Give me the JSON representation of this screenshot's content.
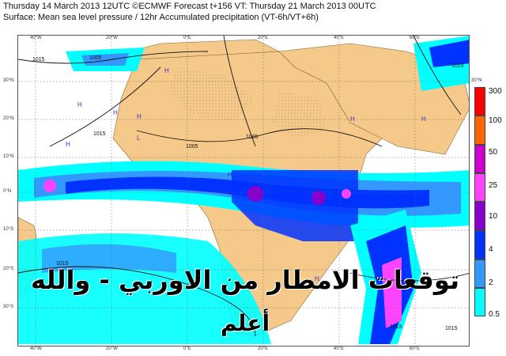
{
  "header": {
    "line1": "Thursday 14 March 2013 12UTC ©ECMWF Forecast t+156 VT: Thursday 21 March 2013 00UTC",
    "line2": "Surface: Mean sea level pressure / 12hr Accumulated precipitation (VT-6h/VT+6h)"
  },
  "map": {
    "lon_labels": [
      "40°W",
      "20°W",
      "0°E",
      "20°E",
      "40°E",
      "60°E"
    ],
    "lat_labels": [
      "30°N",
      "20°N",
      "10°N",
      "0°N",
      "10°S",
      "20°S",
      "30°S"
    ],
    "isobar_labels": [
      "1015",
      "1005",
      "1015",
      "1005",
      "1005",
      "1015",
      "1015",
      "1015",
      "1015"
    ],
    "pressure_markers": [
      "H",
      "H",
      "H",
      "H",
      "L",
      "L",
      "H",
      "H",
      "H",
      "H",
      "H"
    ],
    "colors": {
      "ocean": "#ffffff",
      "land": "#f4c98a",
      "isobar": "#111111"
    }
  },
  "legend": {
    "labels": [
      "300",
      "100",
      "50",
      "25",
      "10",
      "4",
      "2",
      "0.5"
    ],
    "colors": [
      "#ff0000",
      "#ff6600",
      "#cc00cc",
      "#ff44ff",
      "#8800cc",
      "#0033ff",
      "#3399ff",
      "#00ffff"
    ]
  },
  "overlay": {
    "line1": "توقعات الامطار من الاوربي - والله",
    "line2": "أعلم"
  }
}
